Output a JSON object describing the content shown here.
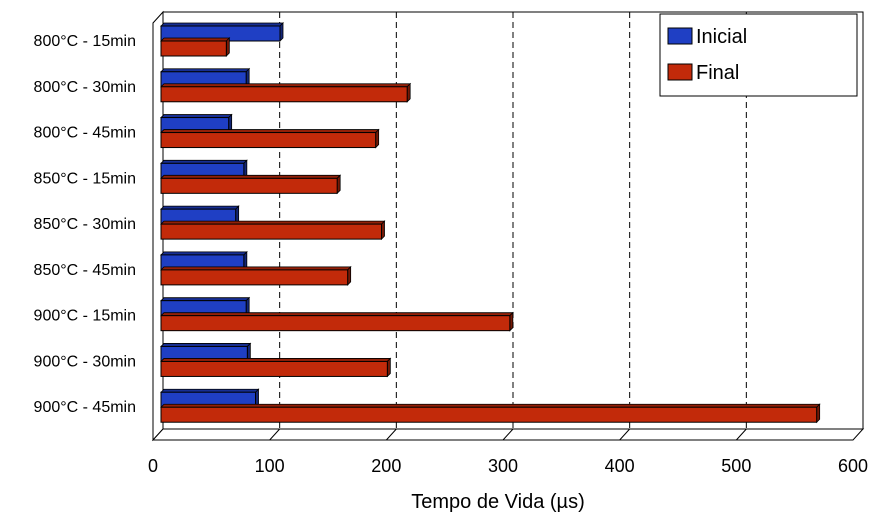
{
  "chart_data": {
    "type": "bar",
    "orientation": "horizontal",
    "title": "",
    "xlabel": "Tempo de Vida (µs)",
    "ylabel": "",
    "xlim": [
      0,
      600
    ],
    "x_ticks": [
      "0",
      "100",
      "200",
      "300",
      "400",
      "500",
      "600"
    ],
    "categories": [
      "800°C - 15min",
      "800°C - 30min",
      "800°C - 45min",
      "850°C - 15min",
      "850°C - 30min",
      "850°C - 45min",
      "900°C - 15min",
      "900°C - 30min",
      "900°C - 45min"
    ],
    "series": [
      {
        "name": "Inicial",
        "color": "#1f3fc4",
        "values": [
          102,
          73,
          58,
          71,
          64,
          71,
          73,
          74,
          81
        ]
      },
      {
        "name": "Final",
        "color": "#c22a0a",
        "values": [
          56,
          211,
          184,
          151,
          189,
          160,
          299,
          194,
          562
        ]
      }
    ],
    "grid": "vertical dashed",
    "legend_position": "top-right",
    "style": "3d"
  }
}
